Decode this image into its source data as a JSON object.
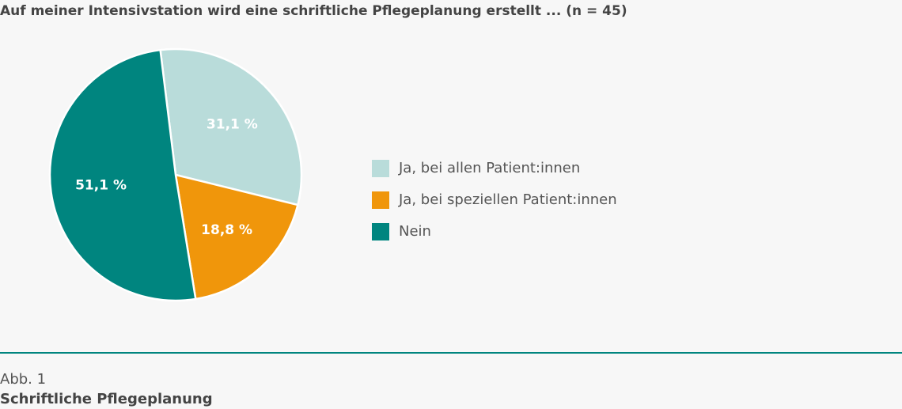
{
  "chart_data": {
    "type": "pie",
    "title": "Auf meiner Intensivstation wird eine schriftliche Pflegeplanung erstellt ... (n = 45)",
    "categories": [
      "Ja, bei allen Patient:innen",
      "Ja, bei speziellen Patient:innen",
      "Nein"
    ],
    "values": [
      31.1,
      18.8,
      51.1
    ],
    "value_labels": [
      "31,1 %",
      "18,8 %",
      "51,1 %"
    ],
    "colors": [
      "#b9dcda",
      "#f0960b",
      "#00857f"
    ],
    "figure_label": "Abb. 1",
    "caption": "Schriftliche Pflegeplanung"
  }
}
